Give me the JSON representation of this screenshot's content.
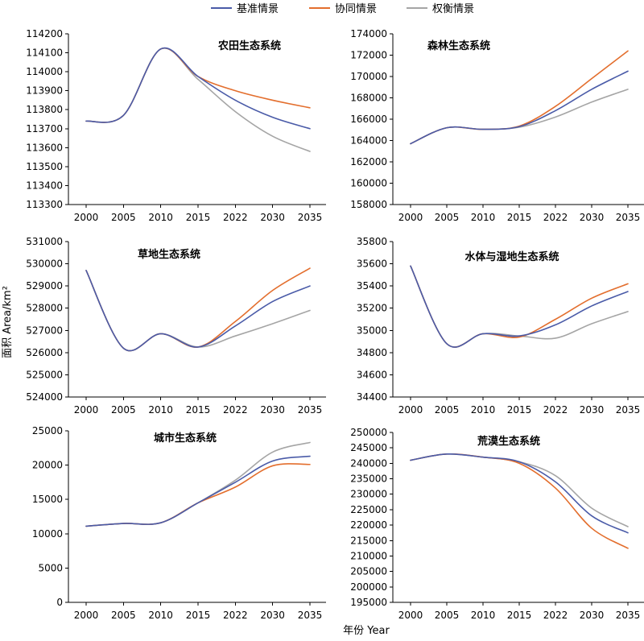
{
  "legend": {
    "items": [
      {
        "label": "基准情景",
        "color": "#4a5ba8"
      },
      {
        "label": "协同情景",
        "color": "#e36e2d"
      },
      {
        "label": "权衡情景",
        "color": "#a5a5a5"
      }
    ]
  },
  "axes": {
    "x_title": "年份 Year",
    "y_title": "面积 Area/km²"
  },
  "chart_data": [
    {
      "type": "line",
      "title": "农田生态系统",
      "categories": [
        "2000",
        "2005",
        "2010",
        "2015",
        "2022",
        "2030",
        "2035"
      ],
      "ylim": [
        113300,
        114200
      ],
      "yticks": [
        113300,
        113400,
        113500,
        113600,
        113700,
        113800,
        113900,
        114000,
        114100,
        114200
      ],
      "grid": false,
      "series": [
        {
          "name": "基准情景",
          "color": "#4a5ba8",
          "values": [
            113740,
            113770,
            114120,
            113975,
            113850,
            113760,
            113700
          ]
        },
        {
          "name": "协同情景",
          "color": "#e36e2d",
          "values": [
            113740,
            113770,
            114120,
            113975,
            113900,
            113850,
            113810
          ]
        },
        {
          "name": "权衡情景",
          "color": "#a5a5a5",
          "values": [
            113740,
            113770,
            114120,
            113960,
            113790,
            113660,
            113580
          ]
        }
      ]
    },
    {
      "type": "line",
      "title": "森林生态系统",
      "categories": [
        "2000",
        "2005",
        "2010",
        "2015",
        "2022",
        "2030",
        "2035"
      ],
      "ylim": [
        158000,
        174000
      ],
      "yticks": [
        158000,
        160000,
        162000,
        164000,
        166000,
        168000,
        170000,
        172000,
        174000
      ],
      "grid": false,
      "series": [
        {
          "name": "基准情景",
          "color": "#4a5ba8",
          "values": [
            163700,
            165200,
            165050,
            165300,
            166800,
            168800,
            170500
          ]
        },
        {
          "name": "协同情景",
          "color": "#e36e2d",
          "values": [
            163700,
            165200,
            165050,
            165350,
            167200,
            169800,
            172400
          ]
        },
        {
          "name": "权衡情景",
          "color": "#a5a5a5",
          "values": [
            163700,
            165200,
            165050,
            165250,
            166200,
            167600,
            168800
          ]
        }
      ]
    },
    {
      "type": "line",
      "title": "草地生态系统",
      "categories": [
        "2000",
        "2005",
        "2010",
        "2015",
        "2022",
        "2030",
        "2035"
      ],
      "ylim": [
        524000,
        531000
      ],
      "yticks": [
        524000,
        525000,
        526000,
        527000,
        528000,
        529000,
        530000,
        531000
      ],
      "grid": false,
      "series": [
        {
          "name": "基准情景",
          "color": "#4a5ba8",
          "values": [
            529700,
            526200,
            526850,
            526250,
            527200,
            528300,
            529000
          ]
        },
        {
          "name": "协同情景",
          "color": "#e36e2d",
          "values": [
            529700,
            526200,
            526850,
            526250,
            527400,
            528800,
            529800
          ]
        },
        {
          "name": "权衡情景",
          "color": "#a5a5a5",
          "values": [
            529700,
            526200,
            526850,
            526250,
            526750,
            527300,
            527900
          ]
        }
      ]
    },
    {
      "type": "line",
      "title": "水体与湿地生态系统",
      "categories": [
        "2000",
        "2005",
        "2010",
        "2015",
        "2022",
        "2030",
        "2035"
      ],
      "ylim": [
        34400,
        35800
      ],
      "yticks": [
        34400,
        34600,
        34800,
        35000,
        35200,
        35400,
        35600,
        35800
      ],
      "grid": false,
      "series": [
        {
          "name": "基准情景",
          "color": "#4a5ba8",
          "values": [
            35580,
            34880,
            34970,
            34950,
            35050,
            35220,
            35350
          ]
        },
        {
          "name": "协同情景",
          "color": "#e36e2d",
          "values": [
            35580,
            34880,
            34970,
            34940,
            35100,
            35290,
            35420
          ]
        },
        {
          "name": "权衡情景",
          "color": "#a5a5a5",
          "values": [
            35580,
            34880,
            34970,
            34950,
            34930,
            35060,
            35170
          ]
        }
      ]
    },
    {
      "type": "line",
      "title": "城市生态系统",
      "categories": [
        "2000",
        "2005",
        "2010",
        "2015",
        "2022",
        "2030",
        "2035"
      ],
      "ylim": [
        0,
        25000
      ],
      "yticks": [
        0,
        5000,
        10000,
        15000,
        20000,
        25000
      ],
      "grid": false,
      "series": [
        {
          "name": "基准情景",
          "color": "#4a5ba8",
          "values": [
            11100,
            11500,
            11600,
            14500,
            17500,
            20600,
            21300
          ]
        },
        {
          "name": "协同情景",
          "color": "#e36e2d",
          "values": [
            11100,
            11500,
            11600,
            14500,
            16800,
            19900,
            20100
          ]
        },
        {
          "name": "权衡情景",
          "color": "#a5a5a5",
          "values": [
            11100,
            11500,
            11600,
            14500,
            17800,
            21900,
            23300
          ]
        }
      ]
    },
    {
      "type": "line",
      "title": "荒漠生态系统",
      "categories": [
        "2000",
        "2005",
        "2010",
        "2015",
        "2022",
        "2030",
        "2035"
      ],
      "ylim": [
        195000,
        250000
      ],
      "yticks": [
        195000,
        200000,
        205000,
        210000,
        215000,
        220000,
        225000,
        230000,
        235000,
        240000,
        245000,
        250000
      ],
      "grid": false,
      "series": [
        {
          "name": "基准情景",
          "color": "#4a5ba8",
          "values": [
            241000,
            243000,
            242000,
            240500,
            234000,
            223000,
            217500
          ]
        },
        {
          "name": "协同情景",
          "color": "#e36e2d",
          "values": [
            241000,
            243000,
            242000,
            240000,
            232000,
            219000,
            212500
          ]
        },
        {
          "name": "权衡情景",
          "color": "#a5a5a5",
          "values": [
            241000,
            243000,
            242000,
            240500,
            236000,
            225500,
            219500
          ]
        }
      ]
    }
  ]
}
